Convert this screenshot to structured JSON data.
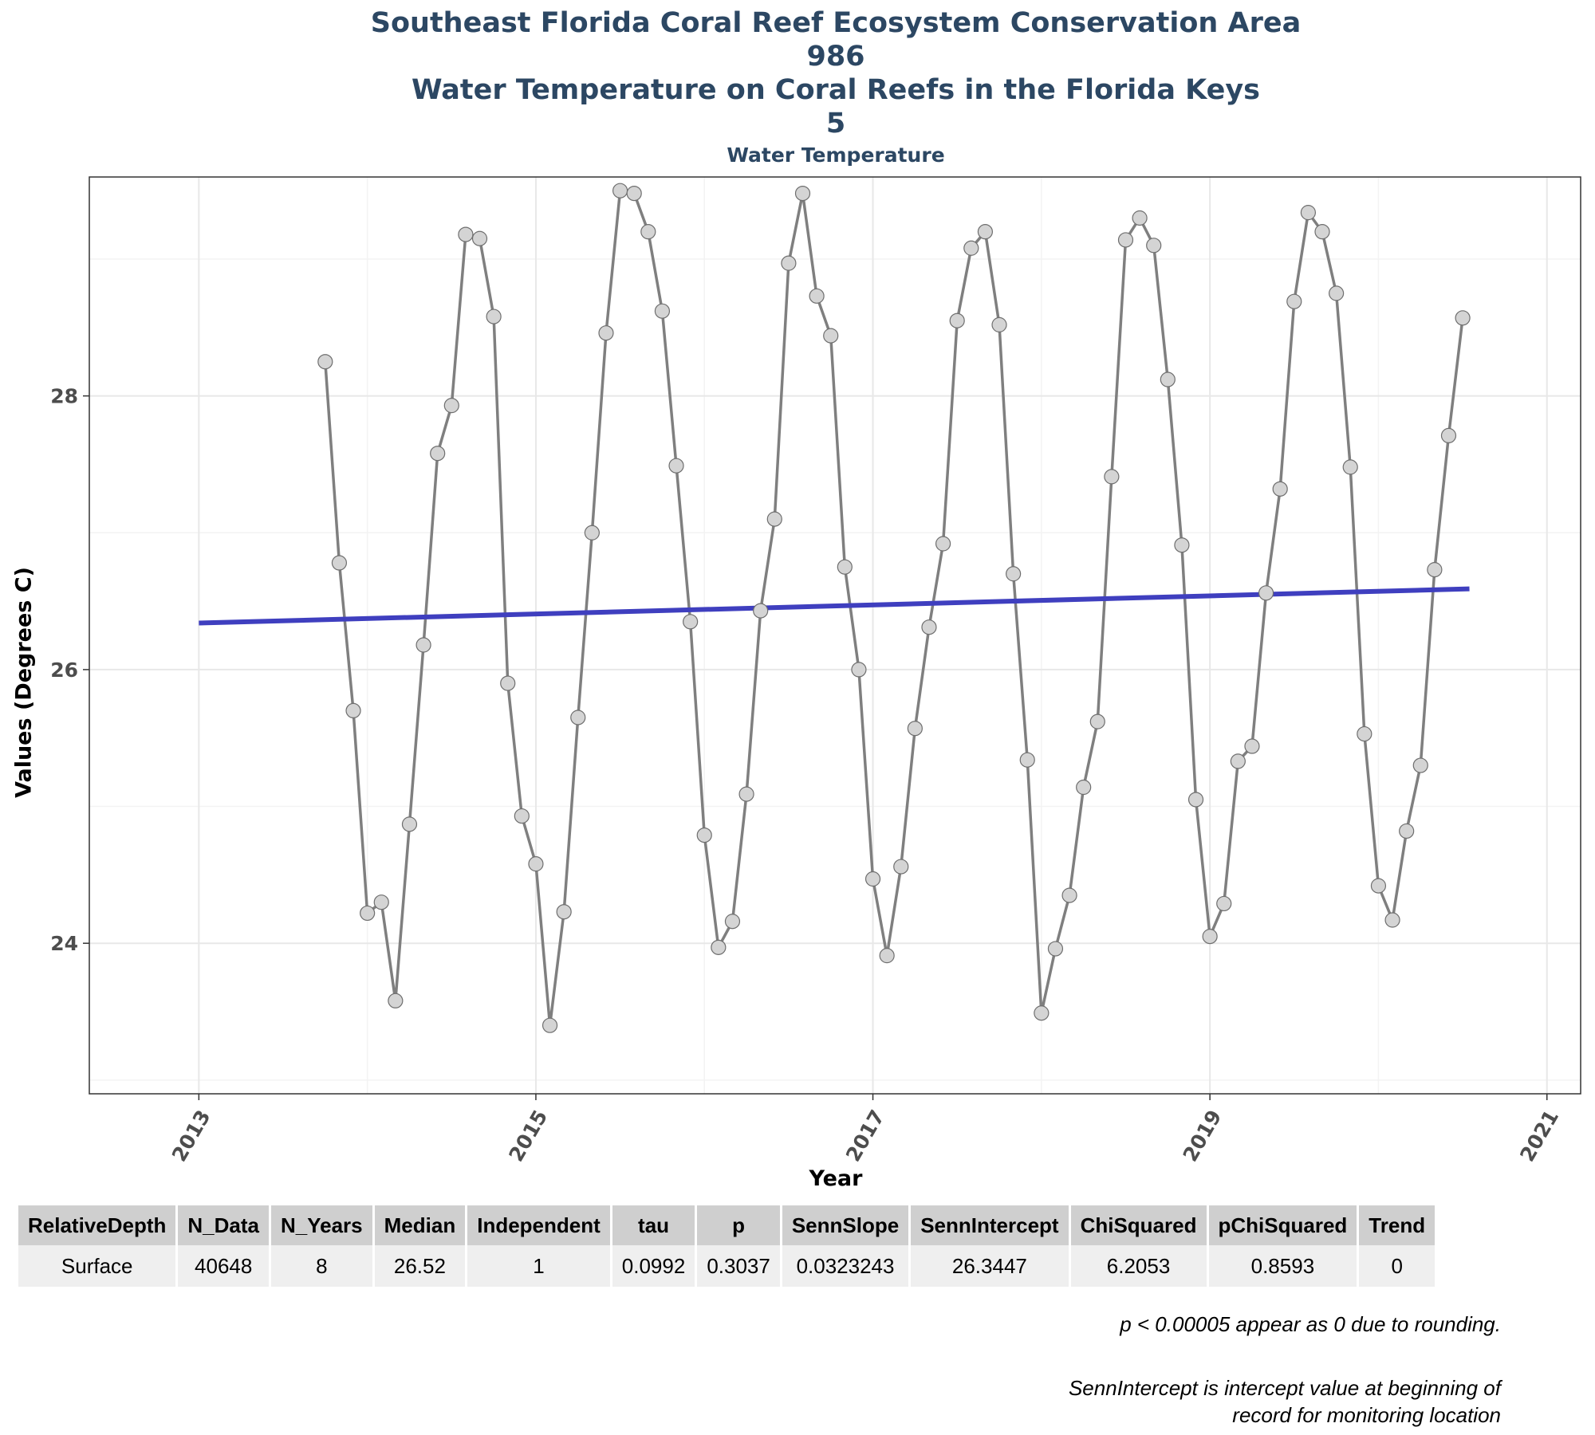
{
  "titles": {
    "line1": "Southeast Florida Coral Reef Ecosystem Conservation Area",
    "line2": "986",
    "line3": "Water Temperature on Coral Reefs in the Florida Keys",
    "line4": "5",
    "subtitle": "Water Temperature"
  },
  "chart_data": {
    "type": "line",
    "title": "Water Temperature",
    "xlabel": "Year",
    "ylabel": "Values (Degrees C)",
    "xlim": [
      2012.35,
      2021.2
    ],
    "ylim": [
      22.9,
      29.6
    ],
    "x_ticks": [
      2013,
      2015,
      2017,
      2019,
      2021
    ],
    "y_ticks": [
      24,
      26,
      28
    ],
    "grid": true,
    "legend": "none",
    "colors": {
      "series": "#7f7f7f",
      "point_fill": "#d4d4d4",
      "point_stroke": "#6e6e6e",
      "trend": "#3f3fbf",
      "grid_major": "#e8e8e8",
      "grid_minor": "#f3f3f3"
    },
    "series": [
      {
        "points": [
          [
            "2013-10",
            28.25
          ],
          [
            "2013-11",
            26.78
          ],
          [
            "2013-12",
            25.7
          ],
          [
            "2014-01",
            24.22
          ],
          [
            "2014-02",
            24.3
          ],
          [
            "2014-03",
            23.58
          ],
          [
            "2014-04",
            24.87
          ],
          [
            "2014-05",
            26.18
          ],
          [
            "2014-06",
            27.58
          ],
          [
            "2014-07",
            27.93
          ],
          [
            "2014-08",
            29.18
          ],
          [
            "2014-09",
            29.15
          ],
          [
            "2014-10",
            28.58
          ],
          [
            "2014-11",
            25.9
          ],
          [
            "2014-12",
            24.93
          ],
          [
            "2015-01",
            24.58
          ],
          [
            "2015-02",
            23.4
          ],
          [
            "2015-03",
            24.23
          ],
          [
            "2015-04",
            25.65
          ],
          [
            "2015-05",
            27.0
          ],
          [
            "2015-06",
            28.46
          ],
          [
            "2015-07",
            29.5
          ],
          [
            "2015-08",
            29.48
          ],
          [
            "2015-09",
            29.2
          ],
          [
            "2015-10",
            28.62
          ],
          [
            "2015-11",
            27.49
          ],
          [
            "2015-12",
            26.35
          ],
          [
            "2016-01",
            24.79
          ],
          [
            "2016-02",
            23.97
          ],
          [
            "2016-03",
            24.16
          ],
          [
            "2016-04",
            25.09
          ],
          [
            "2016-05",
            26.43
          ],
          [
            "2016-06",
            27.1
          ],
          [
            "2016-07",
            28.97
          ],
          [
            "2016-08",
            29.48
          ],
          [
            "2016-09",
            28.73
          ],
          [
            "2016-10",
            28.44
          ],
          [
            "2016-11",
            26.75
          ],
          [
            "2016-12",
            26.0
          ],
          [
            "2017-01",
            24.47
          ],
          [
            "2017-02",
            23.91
          ],
          [
            "2017-03",
            24.56
          ],
          [
            "2017-04",
            25.57
          ],
          [
            "2017-05",
            26.31
          ],
          [
            "2017-06",
            26.92
          ],
          [
            "2017-07",
            28.55
          ],
          [
            "2017-08",
            29.08
          ],
          [
            "2017-09",
            29.2
          ],
          [
            "2017-10",
            28.52
          ],
          [
            "2017-11",
            26.7
          ],
          [
            "2017-12",
            25.34
          ],
          [
            "2018-01",
            23.49
          ],
          [
            "2018-02",
            23.96
          ],
          [
            "2018-03",
            24.35
          ],
          [
            "2018-04",
            25.14
          ],
          [
            "2018-05",
            25.62
          ],
          [
            "2018-06",
            27.41
          ],
          [
            "2018-07",
            29.14
          ],
          [
            "2018-08",
            29.3
          ],
          [
            "2018-09",
            29.1
          ],
          [
            "2018-10",
            28.12
          ],
          [
            "2018-11",
            26.91
          ],
          [
            "2018-12",
            25.05
          ],
          [
            "2019-01",
            24.05
          ],
          [
            "2019-02",
            24.29
          ],
          [
            "2019-03",
            25.33
          ],
          [
            "2019-04",
            25.44
          ],
          [
            "2019-05",
            26.56
          ],
          [
            "2019-06",
            27.32
          ],
          [
            "2019-07",
            28.69
          ],
          [
            "2019-08",
            29.34
          ],
          [
            "2019-09",
            29.2
          ],
          [
            "2019-10",
            28.75
          ],
          [
            "2019-11",
            27.48
          ],
          [
            "2019-12",
            25.53
          ],
          [
            "2020-01",
            24.42
          ],
          [
            "2020-02",
            24.17
          ],
          [
            "2020-03",
            24.82
          ],
          [
            "2020-04",
            25.3
          ],
          [
            "2020-05",
            26.73
          ],
          [
            "2020-06",
            27.71
          ],
          [
            "2020-07",
            28.57
          ]
        ]
      }
    ],
    "trend_line": {
      "x": [
        2013.0,
        2020.54
      ],
      "y": [
        26.34,
        26.59
      ]
    }
  },
  "table": {
    "headers": [
      "RelativeDepth",
      "N_Data",
      "N_Years",
      "Median",
      "Independent",
      "tau",
      "p",
      "SennSlope",
      "SennIntercept",
      "ChiSquared",
      "pChiSquared",
      "Trend"
    ],
    "rows": [
      [
        "Surface",
        "40648",
        "8",
        "26.52",
        "1",
        "0.0992",
        "0.3037",
        "0.0323243",
        "26.3447",
        "6.2053",
        "0.8593",
        "0"
      ]
    ]
  },
  "notes": {
    "rounding": "p < 0.00005 appear as 0 due to rounding.",
    "intercept_line1": "SennIntercept is intercept value at beginning of",
    "intercept_line2": "record for monitoring location"
  }
}
